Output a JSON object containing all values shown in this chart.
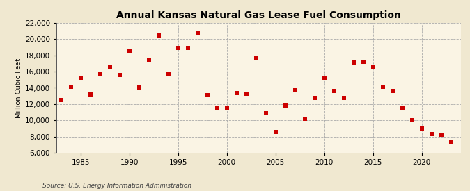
{
  "title": "Annual Kansas Natural Gas Lease Fuel Consumption",
  "ylabel": "Million Cubic Feet",
  "source": "Source: U.S. Energy Information Administration",
  "background_color": "#f0e8d0",
  "plot_background_color": "#faf4e4",
  "marker_color": "#cc0000",
  "marker": "s",
  "marker_size": 4,
  "xlim": [
    1982.5,
    2024
  ],
  "ylim": [
    6000,
    22000
  ],
  "yticks": [
    6000,
    8000,
    10000,
    12000,
    14000,
    16000,
    18000,
    20000,
    22000
  ],
  "xticks": [
    1985,
    1990,
    1995,
    2000,
    2005,
    2010,
    2015,
    2020
  ],
  "data": {
    "1983": 12500,
    "1984": 14100,
    "1985": 15200,
    "1986": 13200,
    "1987": 15700,
    "1988": 16600,
    "1989": 15600,
    "1990": 18500,
    "1991": 14000,
    "1992": 17500,
    "1993": 20500,
    "1994": 15700,
    "1995": 18900,
    "1996": 18900,
    "1997": 20700,
    "1998": 13100,
    "1999": 11600,
    "2000": 11600,
    "2001": 13400,
    "2002": 13300,
    "2003": 17700,
    "2004": 10900,
    "2005": 8600,
    "2006": 11800,
    "2007": 13700,
    "2008": 10200,
    "2009": 12800,
    "2010": 15200,
    "2011": 13600,
    "2012": 12800,
    "2013": 17100,
    "2014": 17200,
    "2015": 16600,
    "2016": 14100,
    "2017": 13600,
    "2018": 11500,
    "2019": 10000,
    "2020": 9000,
    "2021": 8300,
    "2022": 8200,
    "2023": 7400
  }
}
